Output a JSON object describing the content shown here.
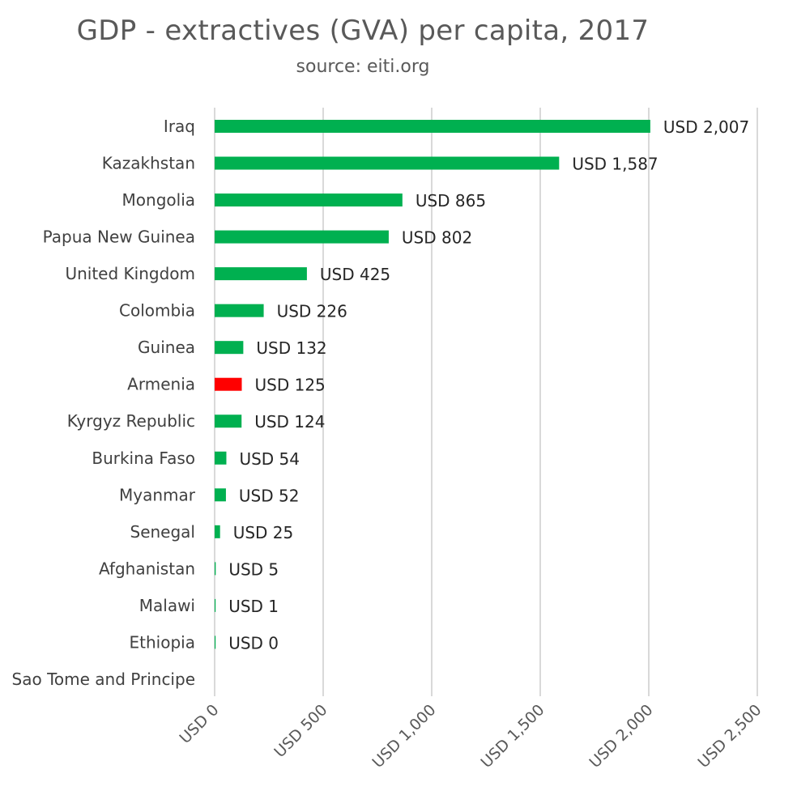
{
  "chart_data": {
    "type": "bar",
    "orientation": "horizontal",
    "title": "GDP - extractives (GVA) per capita, 2017",
    "subtitle": "source: eiti.org",
    "categories": [
      "Iraq",
      "Kazakhstan",
      "Mongolia",
      "Papua New Guinea",
      "United Kingdom",
      "Colombia",
      "Guinea",
      "Armenia",
      "Kyrgyz Republic",
      "Burkina Faso",
      "Myanmar",
      "Senegal",
      "Afghanistan",
      "Malawi",
      "Ethiopia",
      "Sao Tome and Principe"
    ],
    "values": [
      2007,
      1587,
      865,
      802,
      425,
      226,
      132,
      125,
      124,
      54,
      52,
      25,
      5,
      1,
      0,
      null
    ],
    "value_labels": [
      "USD 2,007",
      "USD 1,587",
      "USD 865",
      "USD 802",
      "USD 425",
      "USD 226",
      "USD 132",
      "USD 125",
      "USD 124",
      "USD 54",
      "USD 52",
      "USD 25",
      "USD 5",
      "USD 1",
      "USD 0",
      ""
    ],
    "highlight": "Armenia",
    "colors": {
      "default": "#00b050",
      "highlight": "#ff0000"
    },
    "xlim": [
      0,
      2500
    ],
    "x_ticks": [
      0,
      500,
      1000,
      1500,
      2000,
      2500
    ],
    "x_tick_labels": [
      "USD 0",
      "USD 500",
      "USD 1,000",
      "USD 1,500",
      "USD 2,000",
      "USD 2,500"
    ],
    "grid": true,
    "legend": "none"
  }
}
